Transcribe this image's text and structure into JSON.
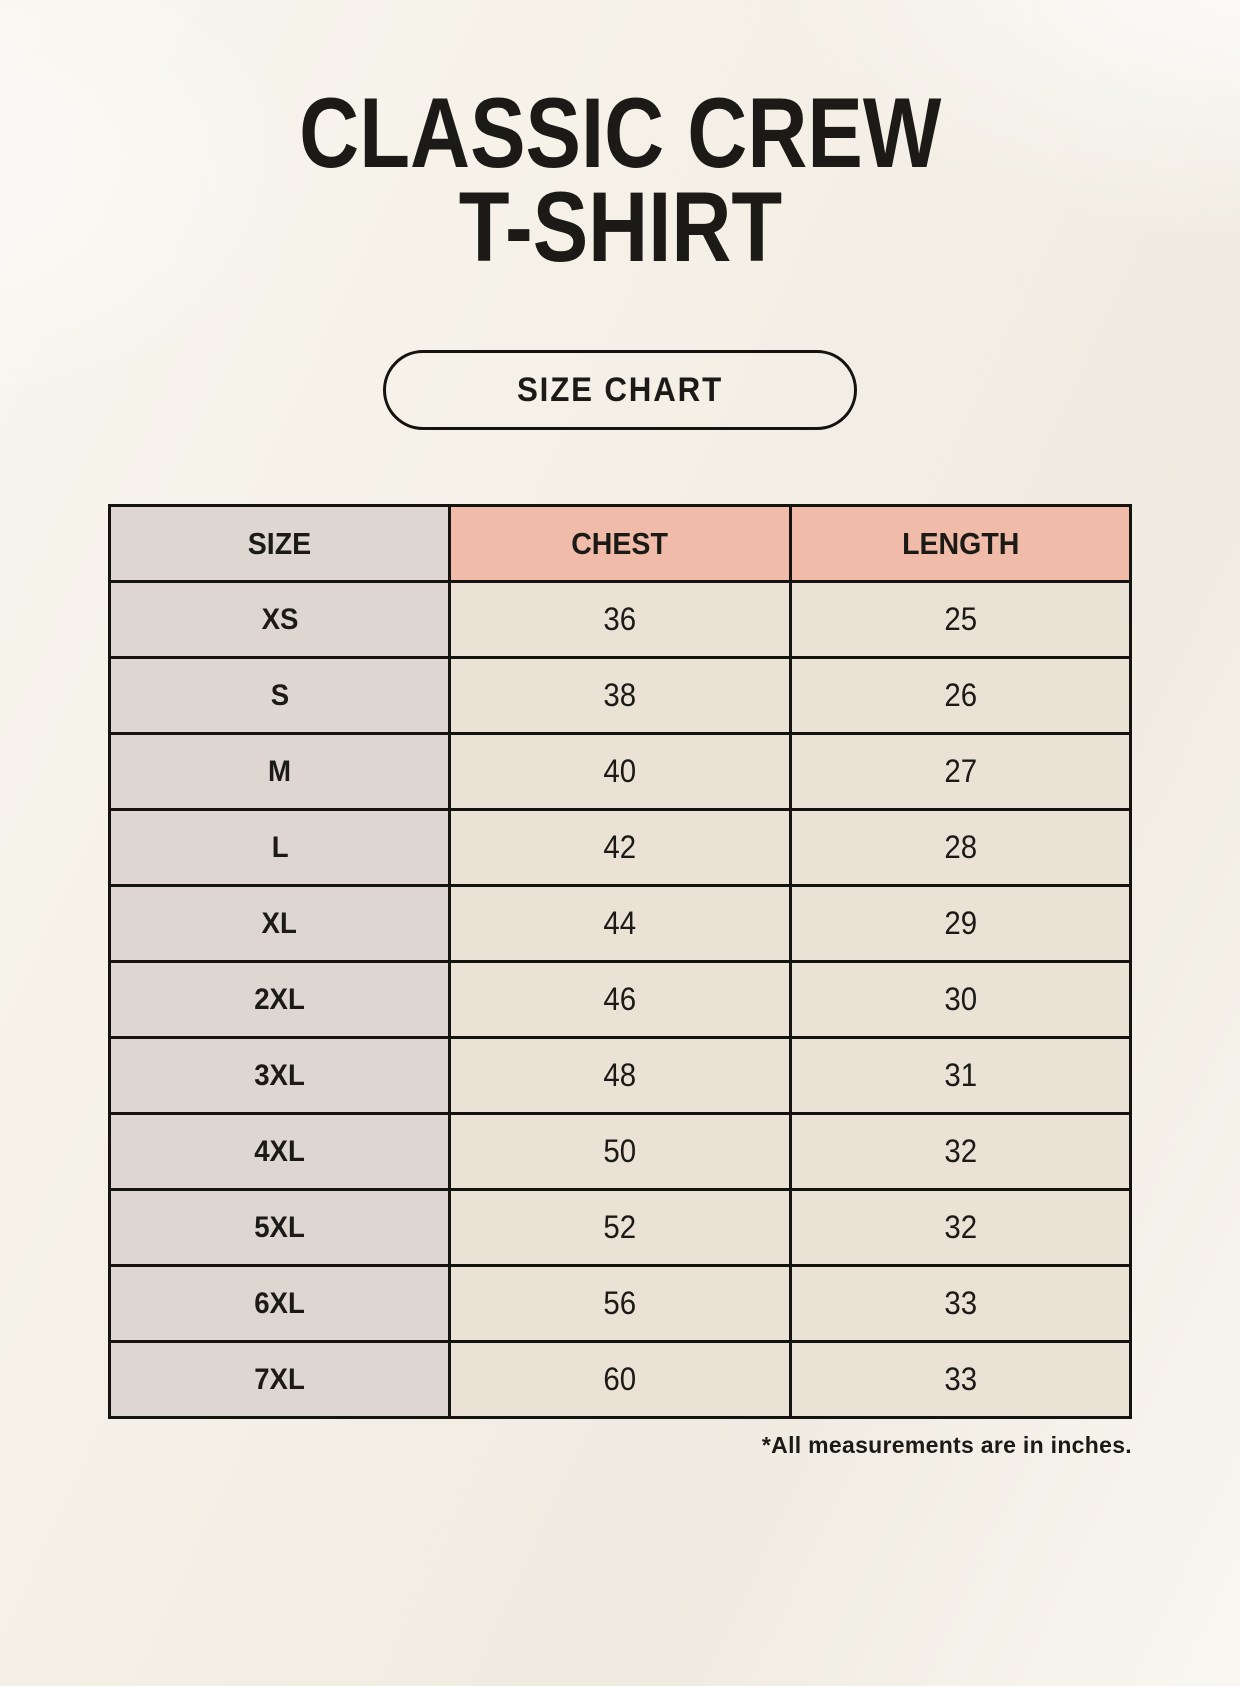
{
  "header": {
    "title_line1": "CLASSIC CREW",
    "title_line2": "T-SHIRT",
    "size_chart_badge": "SIZE CHART"
  },
  "footnote": "*All measurements are in inches.",
  "colors": {
    "page_background": "#f5f1e8",
    "text": "#1c1a17",
    "table_border": "#15130f",
    "size_column_bg": "#ded7d1",
    "header_accent_bg": "#f0bba8",
    "value_cell_bg": "#e9e2d5"
  },
  "chart_data": {
    "type": "table",
    "title": "Classic Crew T-Shirt Size Chart",
    "units": "inches",
    "columns": [
      "SIZE",
      "CHEST",
      "LENGTH"
    ],
    "rows": [
      [
        "XS",
        "36",
        "25"
      ],
      [
        "S",
        "38",
        "26"
      ],
      [
        "M",
        "40",
        "27"
      ],
      [
        "L",
        "42",
        "28"
      ],
      [
        "XL",
        "44",
        "29"
      ],
      [
        "2XL",
        "46",
        "30"
      ],
      [
        "3XL",
        "48",
        "31"
      ],
      [
        "4XL",
        "50",
        "32"
      ],
      [
        "5XL",
        "52",
        "32"
      ],
      [
        "6XL",
        "56",
        "33"
      ],
      [
        "7XL",
        "60",
        "33"
      ]
    ]
  }
}
